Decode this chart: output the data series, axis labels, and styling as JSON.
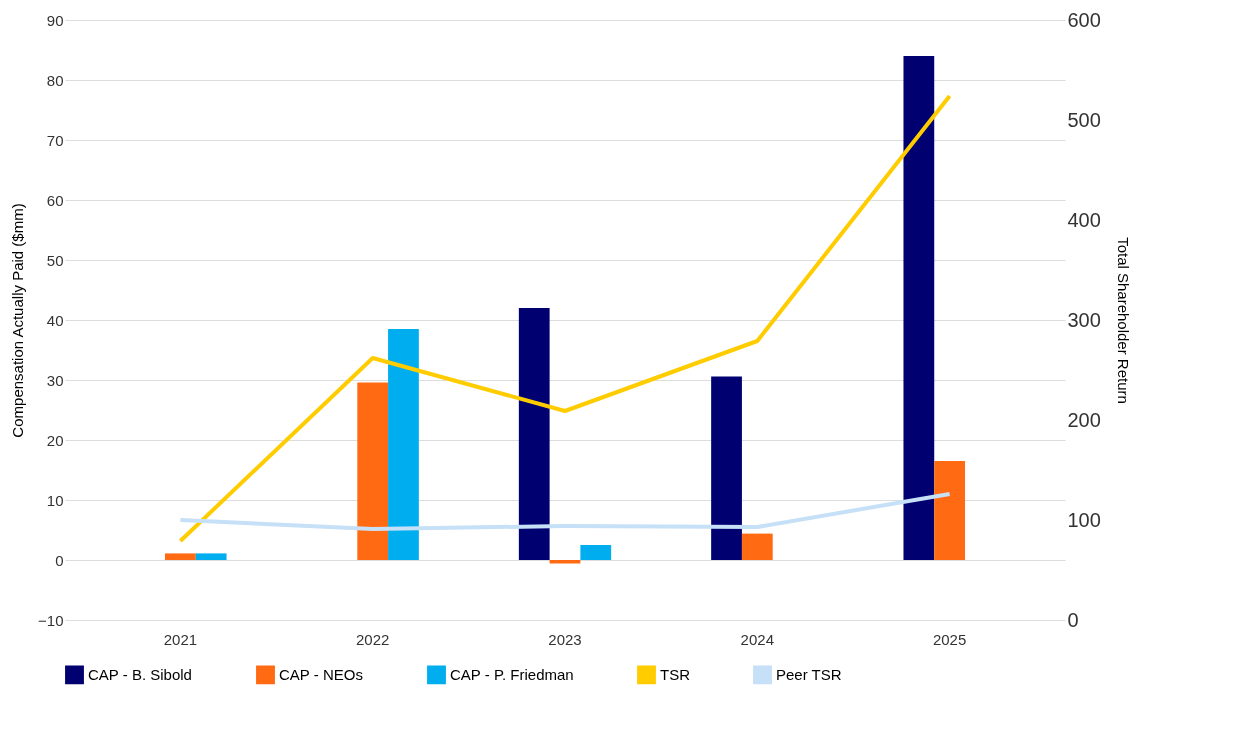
{
  "chart_data": {
    "type": "bar",
    "ylabel": "Compensation Actually Paid ($mm)",
    "y2label": "Total Shareholder Return",
    "categories": [
      "2021",
      "2022",
      "2023",
      "2024",
      "2025"
    ],
    "series": [
      {
        "name": "CAP - B. Sibold",
        "color": "#000070",
        "values": [
          null,
          null,
          42,
          30.6,
          84
        ]
      },
      {
        "name": "CAP - NEOs",
        "color": "#ff6a13",
        "values": [
          1.1,
          29.6,
          -0.6,
          4.4,
          16.5
        ]
      },
      {
        "name": "CAP - P. Friedman",
        "color": "#00aeef",
        "values": [
          1.1,
          38.5,
          2.5,
          null,
          null
        ]
      },
      {
        "name": "TSR",
        "type": "line",
        "axis": "y2",
        "color": "#ffcc00",
        "values": [
          79,
          262,
          209,
          279,
          524
        ]
      },
      {
        "name": "Peer TSR",
        "type": "line",
        "axis": "y2",
        "color": "#c6e0f7",
        "values": [
          100,
          91,
          94,
          93,
          126
        ]
      }
    ],
    "ylim": [
      -10,
      90
    ],
    "yticks": [
      -10,
      0,
      10,
      20,
      30,
      40,
      50,
      60,
      70,
      80,
      90
    ],
    "y2lim": [
      0,
      600
    ],
    "y2ticks": [
      0,
      100,
      200,
      300,
      400,
      500,
      600
    ],
    "grid": "y",
    "legend": "bottom"
  }
}
